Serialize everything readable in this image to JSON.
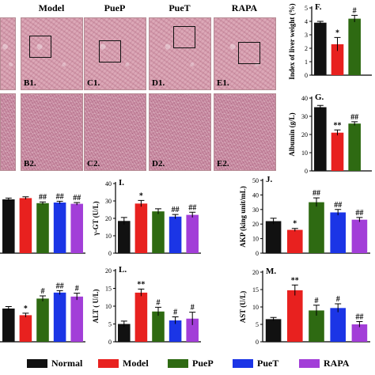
{
  "column_titles": [
    "Model",
    "PueP",
    "PueT",
    "RAPA"
  ],
  "tile_labels_row1": [
    "B1.",
    "C1.",
    "D1.",
    "E1."
  ],
  "tile_labels_row2": [
    "B2.",
    "C2.",
    "D2.",
    "E2."
  ],
  "legend": [
    {
      "name": "Normal",
      "color": "#111111"
    },
    {
      "name": "Model",
      "color": "#e8211f"
    },
    {
      "name": "PueP",
      "color": "#2e6a12"
    },
    {
      "name": "PueT",
      "color": "#1b35e6"
    },
    {
      "name": "RAPA",
      "color": "#a23ed8"
    }
  ],
  "chart_data": [
    {
      "id": "F",
      "panel_label": "F.",
      "type": "bar",
      "categories": [
        "Normal",
        "Model",
        "PueP"
      ],
      "values": [
        3.9,
        2.3,
        4.2
      ],
      "errors": [
        0.1,
        0.5,
        0.25
      ],
      "marks": [
        "",
        "*",
        "#"
      ],
      "ylabel": "Index of liver weight (%)",
      "ylim": [
        0,
        5
      ],
      "yticks": [
        "0",
        "1",
        "2",
        "3",
        "4",
        "5"
      ]
    },
    {
      "id": "G",
      "panel_label": "G.",
      "type": "bar",
      "categories": [
        "Normal",
        "Model",
        "PueP"
      ],
      "values": [
        35,
        21,
        26
      ],
      "errors": [
        1,
        1.5,
        1
      ],
      "marks": [
        "",
        "**",
        "##"
      ],
      "ylabel": "Albumin (g/L)",
      "ylim": [
        0,
        40
      ],
      "yticks": [
        "0",
        "10",
        "20",
        "30",
        "40"
      ]
    },
    {
      "id": "H",
      "panel_label": "",
      "type": "bar",
      "categories": [
        "Normal",
        "Model",
        "PueP",
        "PueT",
        "RAPA"
      ],
      "values": [
        0.85,
        0.87,
        0.79,
        0.8,
        0.78
      ],
      "errors": [
        0.02,
        0.02,
        0.02,
        0.02,
        0.02
      ],
      "marks": [
        "",
        "",
        "##",
        "##",
        "##"
      ],
      "ylabel": "",
      "ylim": [
        0,
        1
      ],
      "yticks": []
    },
    {
      "id": "I",
      "panel_label": "I.",
      "type": "bar",
      "categories": [
        "Normal",
        "Model",
        "PueP",
        "PueT",
        "RAPA"
      ],
      "values": [
        18.5,
        28.5,
        24,
        21,
        22
      ],
      "errors": [
        2,
        1.8,
        1.5,
        1.2,
        1.5
      ],
      "marks": [
        "",
        "*",
        "",
        "##",
        "##"
      ],
      "ylabel": "γ-GT (U/L)",
      "ylim": [
        0,
        40
      ],
      "yticks": [
        "0",
        "10",
        "20",
        "30",
        "40"
      ]
    },
    {
      "id": "J",
      "panel_label": "J.",
      "type": "bar",
      "categories": [
        "Normal",
        "Model",
        "PueP",
        "PueT",
        "RAPA"
      ],
      "values": [
        22,
        16,
        35,
        28,
        23
      ],
      "errors": [
        2,
        1,
        3,
        2,
        1.5
      ],
      "marks": [
        "",
        "*",
        "##",
        "##",
        "##"
      ],
      "ylabel": "AKP (king unit/mL)",
      "ylim": [
        0,
        50
      ],
      "yticks": [
        "0",
        "10",
        "20",
        "30",
        "40",
        "50"
      ]
    },
    {
      "id": "K",
      "panel_label": "",
      "type": "bar",
      "categories": [
        "Normal",
        "Model",
        "PueP",
        "PueT",
        "RAPA"
      ],
      "values": [
        0.5,
        0.4,
        0.65,
        0.74,
        0.68
      ],
      "errors": [
        0.03,
        0.03,
        0.04,
        0.03,
        0.05
      ],
      "marks": [
        "",
        "*",
        "#",
        "##",
        "#"
      ],
      "ylabel": "",
      "ylim": [
        0,
        1
      ],
      "yticks": []
    },
    {
      "id": "L",
      "panel_label": "L.",
      "type": "bar",
      "categories": [
        "Normal",
        "Model",
        "PueP",
        "PueT",
        "RAPA"
      ],
      "values": [
        5,
        13.8,
        8.5,
        6,
        6.5
      ],
      "errors": [
        0.8,
        1,
        1.2,
        1,
        1.8
      ],
      "marks": [
        "",
        "**",
        "#",
        "#",
        "#"
      ],
      "ylabel": "ALT ( U/L)",
      "ylim": [
        0,
        20
      ],
      "yticks": [
        "0",
        "5",
        "10",
        "15",
        "20"
      ]
    },
    {
      "id": "M",
      "panel_label": "M.",
      "type": "bar",
      "categories": [
        "Normal",
        "Model",
        "PueP",
        "PueT",
        "RAPA"
      ],
      "values": [
        6.5,
        14.8,
        9,
        9.7,
        5
      ],
      "errors": [
        0.5,
        1.5,
        1.5,
        1.2,
        0.8
      ],
      "marks": [
        "",
        "**",
        "#",
        "#",
        "##"
      ],
      "ylabel": "AST (U/L)",
      "ylim": [
        0,
        20
      ],
      "yticks": [
        "0",
        "5",
        "10",
        "15",
        "20"
      ]
    }
  ]
}
